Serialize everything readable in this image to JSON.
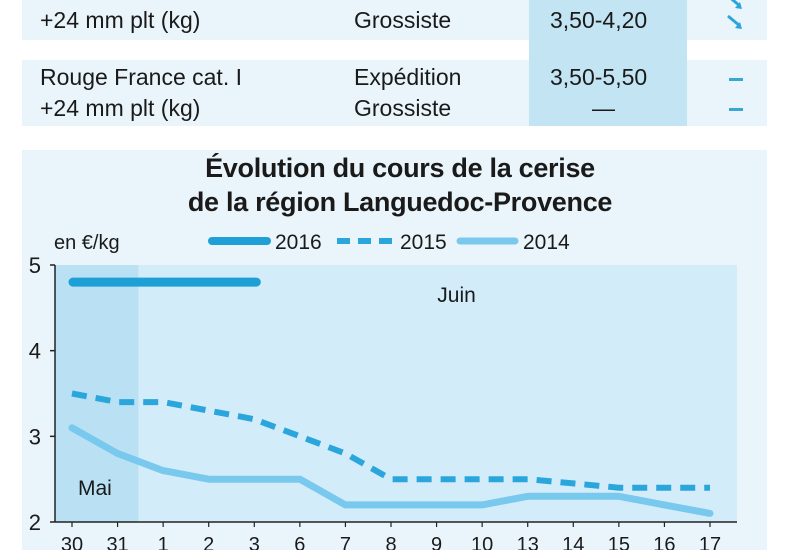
{
  "table": {
    "rows": [
      {
        "product": [
          "",
          "+24 mm plt (kg)"
        ],
        "stages": [
          "",
          "Grossiste"
        ],
        "prices": [
          "",
          "3,50-4,20"
        ],
        "trends": [
          "",
          "down"
        ]
      },
      {
        "product": [
          "Rouge France cat. I",
          "+24 mm plt (kg)"
        ],
        "stages": [
          "Expédition",
          "Grossiste"
        ],
        "prices": [
          "3,50-5,50",
          "—"
        ],
        "trends": [
          "stable",
          "stable"
        ]
      }
    ]
  },
  "chart_data": {
    "type": "line",
    "title": [
      "Évolution du cours de la cerise",
      "de la région Languedoc-Provence"
    ],
    "ylabel": "en €/kg",
    "ylim": [
      2,
      5
    ],
    "yticks": [
      2,
      3,
      4,
      5
    ],
    "categories": [
      "30",
      "31",
      "1",
      "2",
      "3",
      "6",
      "7",
      "8",
      "9",
      "10",
      "13",
      "14",
      "15",
      "16",
      "17"
    ],
    "month_labels": [
      {
        "text": "Mai",
        "category_index": 0
      },
      {
        "text": "Juin",
        "category_index": 8
      }
    ],
    "may_range": [
      0,
      1
    ],
    "series": [
      {
        "name": "2016",
        "style": "solid-thick",
        "color": "#1e9fd6",
        "values": [
          4.8,
          4.8,
          4.8,
          4.8,
          4.8,
          null,
          null,
          null,
          null,
          null,
          null,
          null,
          null,
          null,
          null
        ]
      },
      {
        "name": "2015",
        "style": "dashed",
        "color": "#2ba6dc",
        "values": [
          3.5,
          3.4,
          3.4,
          3.3,
          3.2,
          3.0,
          2.8,
          2.5,
          2.5,
          2.5,
          2.5,
          2.45,
          2.4,
          2.4,
          2.4
        ]
      },
      {
        "name": "2014",
        "style": "solid",
        "color": "#79c9ee",
        "values": [
          3.1,
          2.8,
          2.6,
          2.5,
          2.5,
          2.5,
          2.2,
          2.2,
          2.2,
          2.2,
          2.3,
          2.3,
          2.3,
          2.2,
          2.1
        ]
      }
    ],
    "colors": {
      "panel_bg": "#eaf5fb",
      "june_bg": "#d2edf9",
      "may_bg": "#b9e0f3",
      "axis": "#222222"
    }
  }
}
